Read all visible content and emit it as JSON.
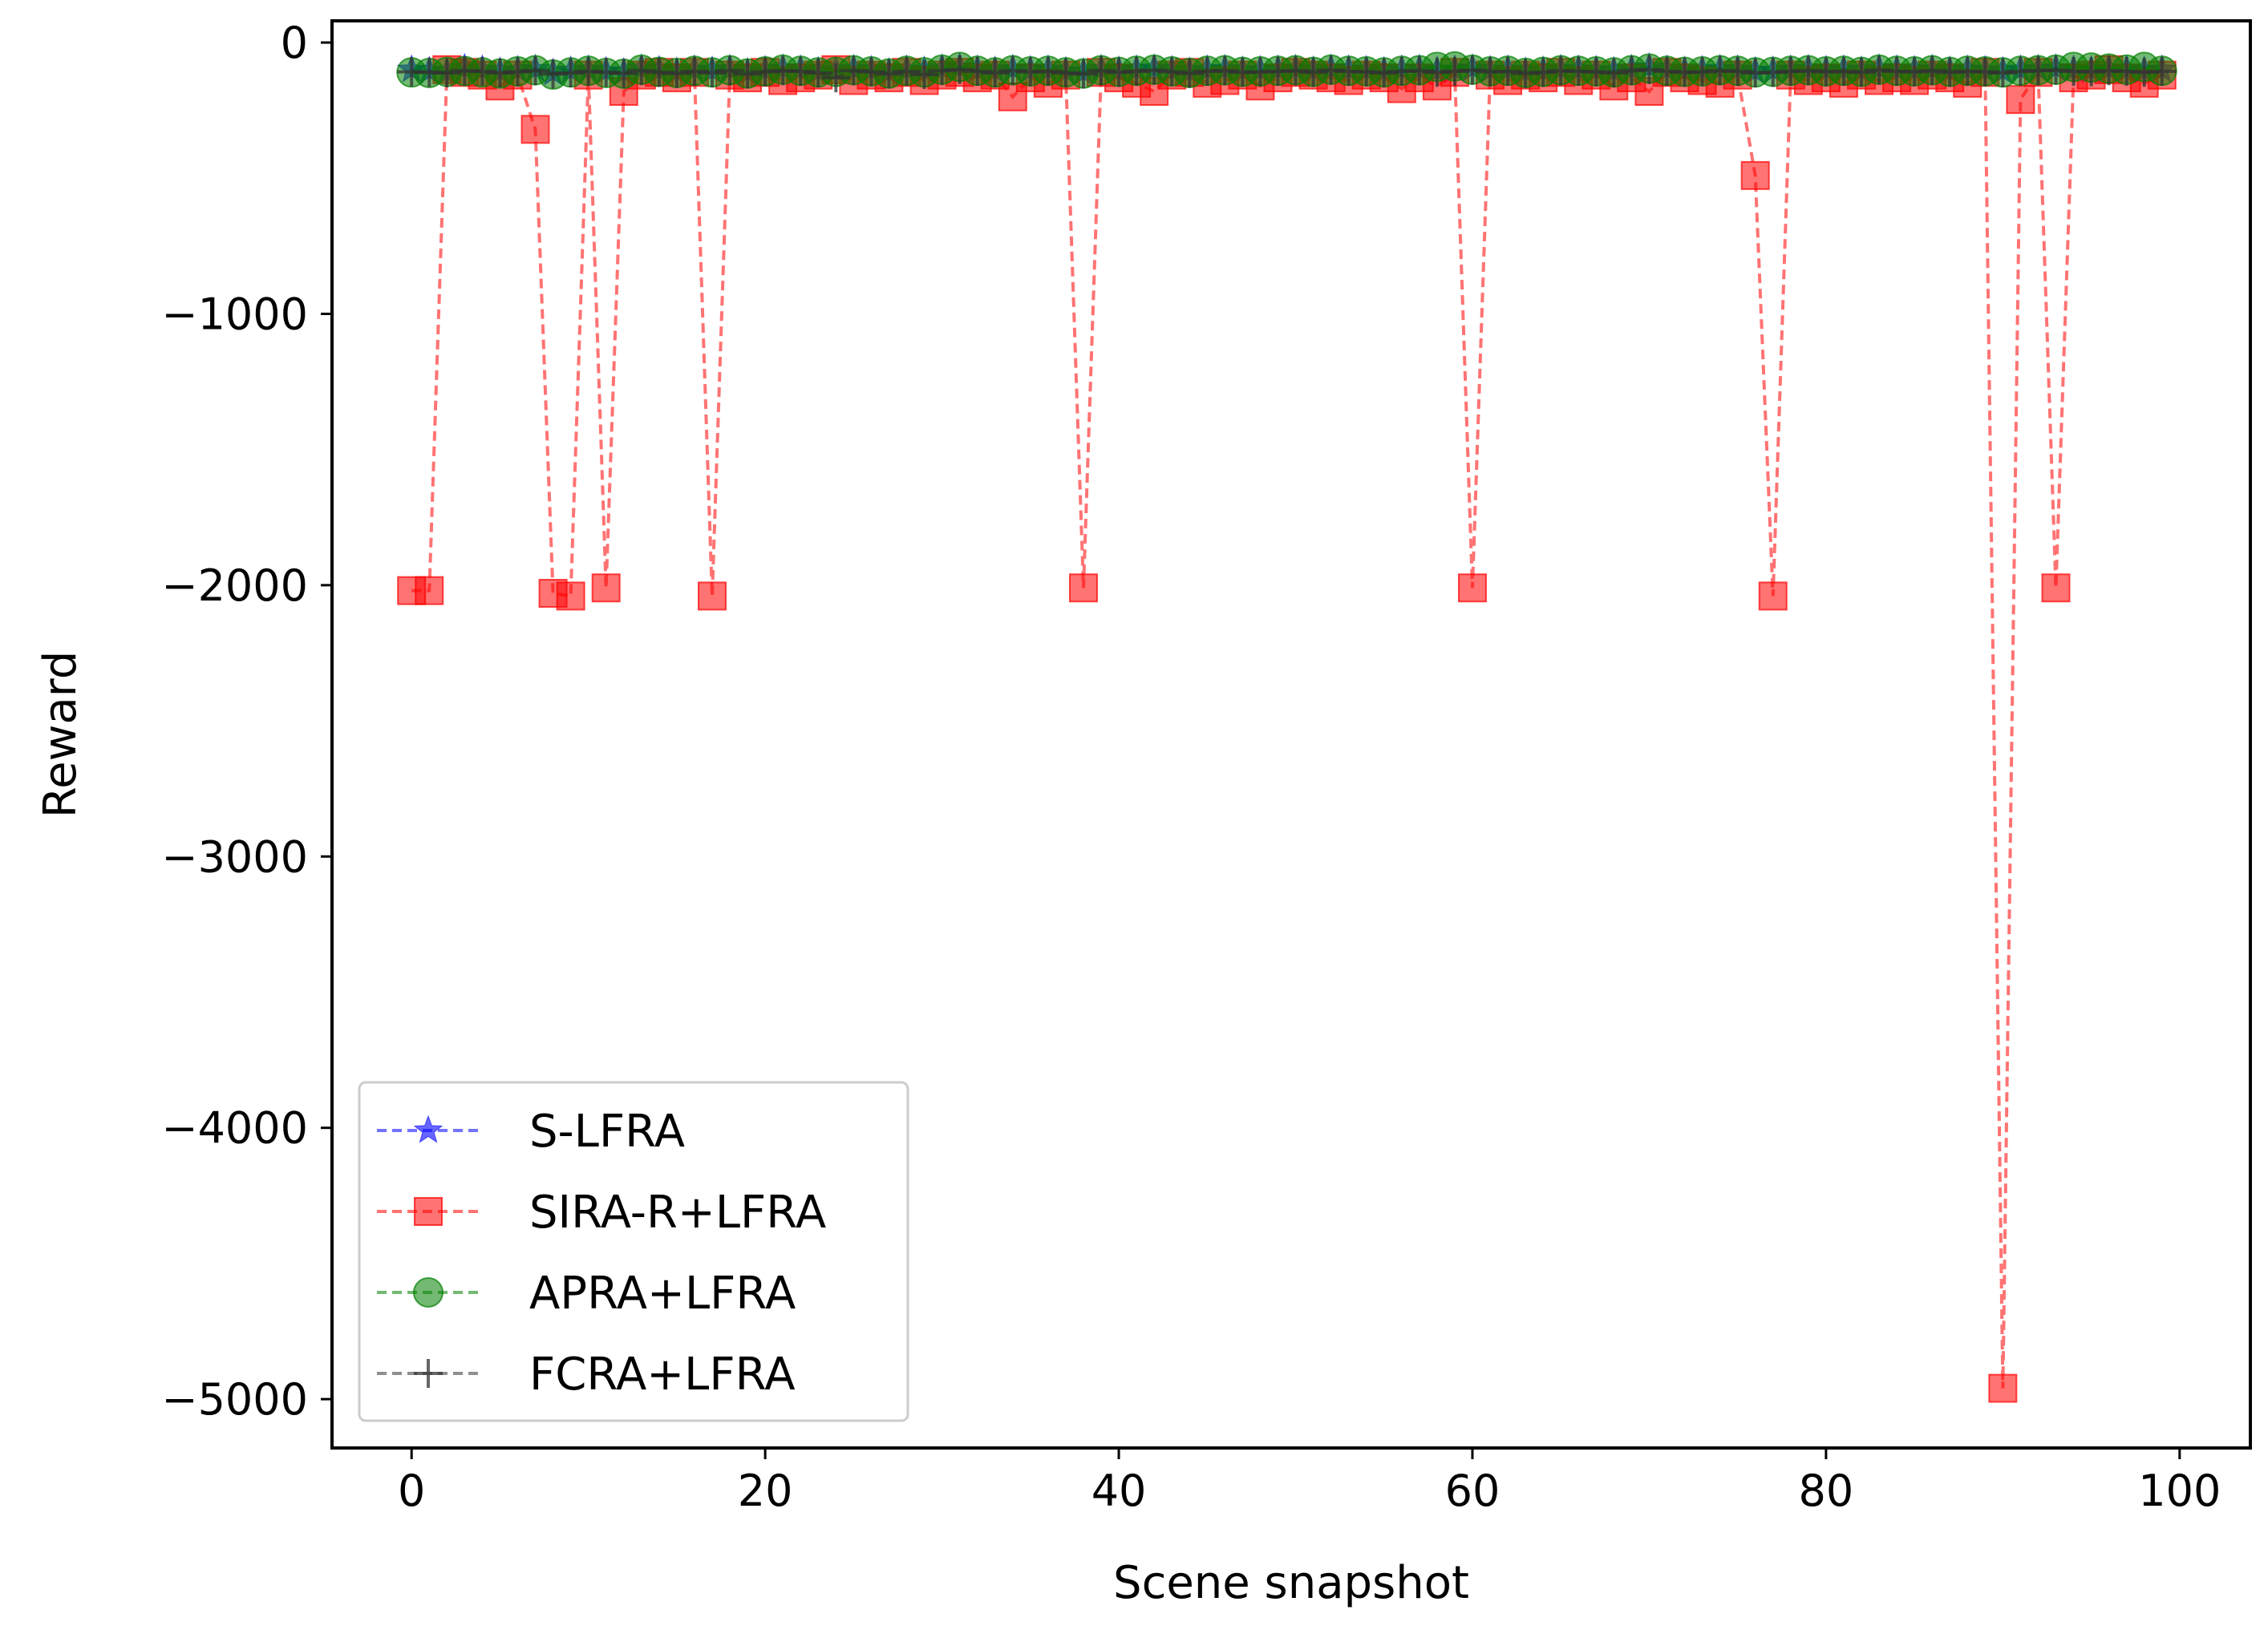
{
  "chart_data": {
    "type": "line",
    "title": "",
    "xlabel": "Scene snapshot",
    "ylabel": "Reward",
    "xlim": [
      -4.5,
      104
    ],
    "ylim": [
      -5180,
      80
    ],
    "xticks": [
      0,
      20,
      40,
      60,
      80,
      100
    ],
    "yticks": [
      0,
      -1000,
      -2000,
      -3000,
      -4000,
      -5000
    ],
    "xtick_labels": [
      "0",
      "20",
      "40",
      "60",
      "80",
      "100"
    ],
    "ytick_labels": [
      "0",
      "−1000",
      "−2000",
      "−3000",
      "−4000",
      "−5000"
    ],
    "grid": false,
    "legend_position": "lower-left",
    "series": [
      {
        "name": "S-LFRA",
        "color": "#0000ff",
        "marker": "star",
        "linestyle": "dashed",
        "x": [
          0,
          1,
          2,
          3,
          4,
          5,
          6,
          7,
          8,
          9,
          10,
          11,
          12,
          13,
          14,
          15,
          16,
          17,
          18,
          19,
          20,
          21,
          22,
          23,
          24,
          25,
          26,
          27,
          28,
          29,
          30,
          31,
          32,
          33,
          34,
          35,
          36,
          37,
          38,
          39,
          40,
          41,
          42,
          43,
          44,
          45,
          46,
          47,
          48,
          49,
          50,
          51,
          52,
          53,
          54,
          55,
          56,
          57,
          58,
          59,
          60,
          61,
          62,
          63,
          64,
          65,
          66,
          67,
          68,
          69,
          70,
          71,
          72,
          73,
          74,
          75,
          76,
          77,
          78,
          79,
          80,
          81,
          82,
          83,
          84,
          85,
          86,
          87,
          88,
          89,
          90,
          91,
          92,
          93,
          94,
          95,
          96,
          97,
          98,
          99
        ],
        "values": [
          -100,
          -105,
          -110,
          -95,
          -100,
          -108,
          -102,
          -98,
          -112,
          -104,
          -100,
          -106,
          -110,
          -96,
          -102,
          -108,
          -100,
          -104,
          -98,
          -110,
          -102,
          -96,
          -100,
          -106,
          -104,
          -98,
          -102,
          -110,
          -100,
          -104,
          -96,
          -92,
          -100,
          -104,
          -98,
          -102,
          -100,
          -106,
          -110,
          -98,
          -104,
          -100,
          -96,
          -102,
          -108,
          -100,
          -98,
          -104,
          -102,
          -100,
          -98,
          -104,
          -96,
          -100,
          -102,
          -106,
          -100,
          -98,
          -104,
          -100,
          -96,
          -102,
          -100,
          -108,
          -104,
          -98,
          -100,
          -102,
          -106,
          -98,
          -92,
          -100,
          -104,
          -102,
          -98,
          -100,
          -106,
          -104,
          -100,
          -98,
          -102,
          -100,
          -104,
          -96,
          -100,
          -102,
          -98,
          -104,
          -100,
          -102,
          -106,
          -100,
          -98,
          -96,
          -100,
          -102,
          -98,
          -100,
          -104,
          -100
        ]
      },
      {
        "name": "SIRA-R+LFRA",
        "color": "#ff0000",
        "marker": "square",
        "linestyle": "dashed",
        "x": [
          0,
          1,
          2,
          3,
          4,
          5,
          6,
          7,
          8,
          9,
          10,
          11,
          12,
          13,
          14,
          15,
          16,
          17,
          18,
          19,
          20,
          21,
          22,
          23,
          24,
          25,
          26,
          27,
          28,
          29,
          30,
          31,
          32,
          33,
          34,
          35,
          36,
          37,
          38,
          39,
          40,
          41,
          42,
          43,
          44,
          45,
          46,
          47,
          48,
          49,
          50,
          51,
          52,
          53,
          54,
          55,
          56,
          57,
          58,
          59,
          60,
          61,
          62,
          63,
          64,
          65,
          66,
          67,
          68,
          69,
          70,
          71,
          72,
          73,
          74,
          75,
          76,
          77,
          78,
          79,
          80,
          81,
          82,
          83,
          84,
          85,
          86,
          87,
          88,
          89,
          90,
          91,
          92,
          93,
          94,
          95,
          96,
          97,
          98,
          99
        ],
        "values": [
          -2020,
          -2020,
          -100,
          -110,
          -120,
          -160,
          -120,
          -320,
          -2030,
          -2040,
          -120,
          -2010,
          -180,
          -120,
          -110,
          -130,
          -110,
          -2040,
          -120,
          -130,
          -110,
          -140,
          -130,
          -120,
          -100,
          -140,
          -120,
          -130,
          -110,
          -140,
          -120,
          -110,
          -130,
          -120,
          -200,
          -130,
          -150,
          -120,
          -2010,
          -110,
          -130,
          -150,
          -180,
          -120,
          -110,
          -150,
          -140,
          -120,
          -160,
          -130,
          -110,
          -120,
          -130,
          -140,
          -120,
          -130,
          -170,
          -130,
          -160,
          -110,
          -2010,
          -120,
          -140,
          -120,
          -130,
          -110,
          -140,
          -120,
          -160,
          -130,
          -180,
          -110,
          -130,
          -140,
          -150,
          -120,
          -490,
          -2040,
          -120,
          -140,
          -130,
          -150,
          -120,
          -140,
          -130,
          -140,
          -120,
          -130,
          -150,
          -110,
          -4960,
          -210,
          -110,
          -2010,
          -130,
          -120,
          -100,
          -130,
          -150,
          -120
        ]
      },
      {
        "name": "APRA+LFRA",
        "color": "#008000",
        "marker": "circle",
        "linestyle": "dashed",
        "x": [
          0,
          1,
          2,
          3,
          4,
          5,
          6,
          7,
          8,
          9,
          10,
          11,
          12,
          13,
          14,
          15,
          16,
          17,
          18,
          19,
          20,
          21,
          22,
          23,
          24,
          25,
          26,
          27,
          28,
          29,
          30,
          31,
          32,
          33,
          34,
          35,
          36,
          37,
          38,
          39,
          40,
          41,
          42,
          43,
          44,
          45,
          46,
          47,
          48,
          49,
          50,
          51,
          52,
          53,
          54,
          55,
          56,
          57,
          58,
          59,
          60,
          61,
          62,
          63,
          64,
          65,
          66,
          67,
          68,
          69,
          70,
          71,
          72,
          73,
          74,
          75,
          76,
          77,
          78,
          79,
          80,
          81,
          82,
          83,
          84,
          85,
          86,
          87,
          88,
          89,
          90,
          91,
          92,
          93,
          94,
          95,
          96,
          97,
          98,
          99
        ],
        "values": [
          -110,
          -112,
          -108,
          -105,
          -110,
          -114,
          -106,
          -102,
          -118,
          -110,
          -104,
          -112,
          -115,
          -100,
          -108,
          -112,
          -104,
          -110,
          -102,
          -114,
          -106,
          -100,
          -104,
          -110,
          -108,
          -102,
          -106,
          -114,
          -104,
          -110,
          -100,
          -90,
          -104,
          -110,
          -102,
          -106,
          -104,
          -110,
          -114,
          -102,
          -108,
          -104,
          -100,
          -106,
          -112,
          -104,
          -102,
          -108,
          -106,
          -104,
          -102,
          -108,
          -100,
          -104,
          -106,
          -110,
          -104,
          -102,
          -90,
          -88,
          -100,
          -106,
          -104,
          -112,
          -108,
          -102,
          -104,
          -106,
          -110,
          -102,
          -96,
          -104,
          -108,
          -106,
          -102,
          -104,
          -110,
          -108,
          -104,
          -102,
          -106,
          -104,
          -108,
          -100,
          -104,
          -106,
          -102,
          -108,
          -104,
          -106,
          -110,
          -104,
          -102,
          -100,
          -90,
          -92,
          -96,
          -100,
          -90,
          -104
        ]
      },
      {
        "name": "FCRA+LFRA",
        "color": "#333333",
        "marker": "plus",
        "linestyle": "dashed",
        "x": [
          0,
          1,
          2,
          3,
          4,
          5,
          6,
          7,
          8,
          9,
          10,
          11,
          12,
          13,
          14,
          15,
          16,
          17,
          18,
          19,
          20,
          21,
          22,
          23,
          24,
          25,
          26,
          27,
          28,
          29,
          30,
          31,
          32,
          33,
          34,
          35,
          36,
          37,
          38,
          39,
          40,
          41,
          42,
          43,
          44,
          45,
          46,
          47,
          48,
          49,
          50,
          51,
          52,
          53,
          54,
          55,
          56,
          57,
          58,
          59,
          60,
          61,
          62,
          63,
          64,
          65,
          66,
          67,
          68,
          69,
          70,
          71,
          72,
          73,
          74,
          75,
          76,
          77,
          78,
          79,
          80,
          81,
          82,
          83,
          84,
          85,
          86,
          87,
          88,
          89,
          90,
          91,
          92,
          93,
          94,
          95,
          96,
          97,
          98,
          99
        ],
        "values": [
          -108,
          -110,
          -112,
          -104,
          -106,
          -112,
          -108,
          -104,
          -116,
          -112,
          -106,
          -110,
          -114,
          -104,
          -110,
          -114,
          -106,
          -112,
          -104,
          -116,
          -108,
          -104,
          -106,
          -112,
          -130,
          -104,
          -108,
          -116,
          -106,
          -118,
          -104,
          -100,
          -106,
          -112,
          -104,
          -108,
          -106,
          -112,
          -116,
          -104,
          -110,
          -106,
          -102,
          -108,
          -114,
          -106,
          -104,
          -110,
          -108,
          -106,
          -104,
          -110,
          -102,
          -106,
          -108,
          -112,
          -106,
          -104,
          -110,
          -106,
          -102,
          -108,
          -106,
          -114,
          -110,
          -104,
          -106,
          -108,
          -112,
          -104,
          -100,
          -106,
          -110,
          -108,
          -104,
          -106,
          -112,
          -110,
          -106,
          -104,
          -108,
          -106,
          -110,
          -102,
          -106,
          -108,
          -104,
          -110,
          -106,
          -108,
          -112,
          -106,
          -104,
          -102,
          -106,
          -108,
          -104,
          -106,
          -110,
          -106
        ]
      }
    ]
  }
}
